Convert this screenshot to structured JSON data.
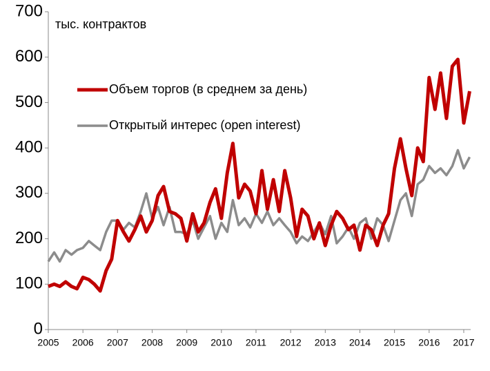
{
  "chart_data": {
    "type": "line",
    "y_label": "тыс. контрактов",
    "x": [
      2005,
      2005.17,
      2005.33,
      2005.5,
      2005.67,
      2005.83,
      2006,
      2006.17,
      2006.33,
      2006.5,
      2006.67,
      2006.83,
      2007,
      2007.17,
      2007.33,
      2007.5,
      2007.67,
      2007.83,
      2008,
      2008.17,
      2008.33,
      2008.5,
      2008.67,
      2008.83,
      2009,
      2009.17,
      2009.33,
      2009.5,
      2009.67,
      2009.83,
      2010,
      2010.17,
      2010.33,
      2010.5,
      2010.67,
      2010.83,
      2011,
      2011.17,
      2011.33,
      2011.5,
      2011.67,
      2011.83,
      2012,
      2012.17,
      2012.33,
      2012.5,
      2012.67,
      2012.83,
      2013,
      2013.17,
      2013.33,
      2013.5,
      2013.67,
      2013.83,
      2014,
      2014.17,
      2014.33,
      2014.5,
      2014.67,
      2014.83,
      2015,
      2015.17,
      2015.33,
      2015.5,
      2015.67,
      2015.83,
      2016,
      2016.17,
      2016.33,
      2016.5,
      2016.67,
      2016.83,
      2017,
      2017.17
    ],
    "series": [
      {
        "name": "Объем торгов (в среднем за день)",
        "color": "#c00000",
        "width": 5,
        "values": [
          95,
          100,
          95,
          105,
          95,
          90,
          115,
          110,
          100,
          85,
          130,
          155,
          240,
          215,
          195,
          220,
          250,
          215,
          240,
          295,
          315,
          260,
          255,
          245,
          195,
          255,
          215,
          235,
          280,
          310,
          245,
          345,
          410,
          290,
          320,
          305,
          255,
          350,
          265,
          330,
          260,
          350,
          290,
          205,
          265,
          250,
          200,
          235,
          185,
          230,
          260,
          245,
          220,
          230,
          175,
          230,
          220,
          185,
          230,
          255,
          355,
          420,
          355,
          295,
          400,
          370,
          555,
          485,
          565,
          465,
          580,
          595,
          455,
          525
        ]
      },
      {
        "name": "Открытый интерес (open interest)",
        "color": "#8c8c8c",
        "width": 3.5,
        "values": [
          150,
          170,
          150,
          175,
          165,
          175,
          180,
          195,
          185,
          175,
          215,
          240,
          240,
          220,
          235,
          225,
          260,
          300,
          245,
          270,
          230,
          270,
          215,
          215,
          210,
          240,
          200,
          225,
          250,
          200,
          235,
          215,
          285,
          230,
          245,
          225,
          255,
          235,
          260,
          230,
          245,
          230,
          215,
          190,
          205,
          195,
          215,
          235,
          210,
          250,
          190,
          205,
          225,
          200,
          235,
          245,
          200,
          245,
          230,
          195,
          240,
          285,
          300,
          250,
          320,
          330,
          360,
          345,
          355,
          340,
          360,
          395,
          355,
          380
        ]
      }
    ],
    "xlim": [
      2005,
      2017.2
    ],
    "xticks": [
      2005,
      2006,
      2007,
      2008,
      2009,
      2010,
      2011,
      2012,
      2013,
      2014,
      2015,
      2016,
      2017
    ],
    "ylim": [
      0,
      700
    ],
    "yticks": [
      0,
      100,
      200,
      300,
      400,
      500,
      600,
      700
    ]
  }
}
